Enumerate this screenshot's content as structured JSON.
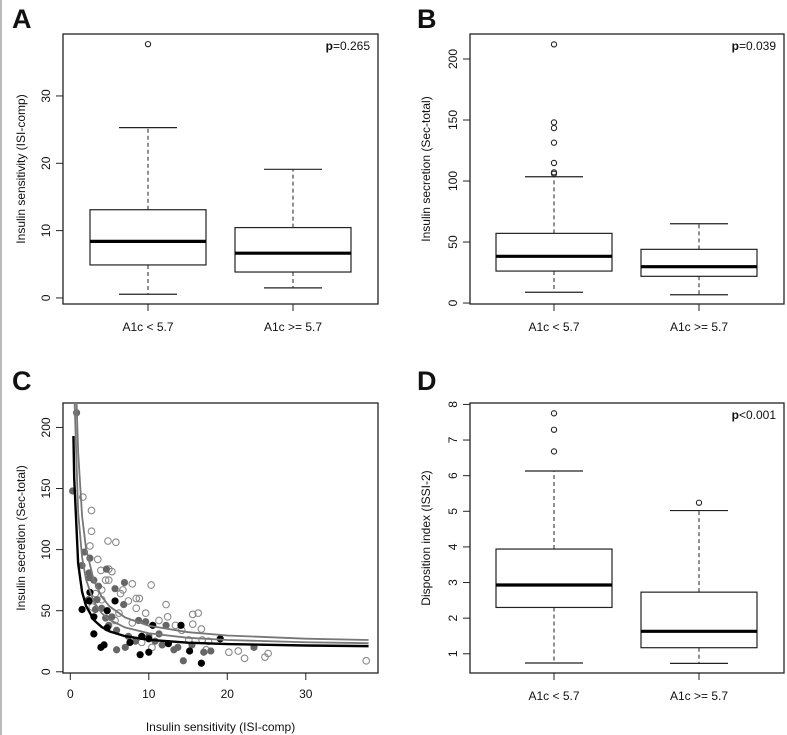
{
  "chart_data": [
    {
      "panel": "A",
      "type": "boxplot",
      "ylabel": "Insulin sensitivity (ISI-comp)",
      "categories": [
        "A1c < 5.7",
        "A1c >= 5.7"
      ],
      "ylim": [
        -0.9,
        39.2
      ],
      "yticks": [
        "0",
        "10",
        "20",
        "30"
      ],
      "p_label": "p",
      "p_value": "=0.265",
      "boxes": [
        {
          "whisker_low": 0.55,
          "q1": 4.9,
          "median": 8.4,
          "q3": 13.1,
          "whisker_high": 25.3,
          "outliers": [
            37.7
          ]
        },
        {
          "whisker_low": 1.5,
          "q1": 3.85,
          "median": 6.65,
          "q3": 10.45,
          "whisker_high": 19.1,
          "outliers": []
        }
      ]
    },
    {
      "panel": "B",
      "type": "boxplot",
      "ylabel": "Insulin secretion (Sec-total)",
      "categories": [
        "A1c < 5.7",
        "A1c >= 5.7"
      ],
      "ylim": [
        -0.8,
        220.5
      ],
      "yticks": [
        "0",
        "50",
        "100",
        "150",
        "200"
      ],
      "p_label": "p",
      "p_value": "=0.039",
      "boxes": [
        {
          "whisker_low": 8.8,
          "q1": 26.2,
          "median": 38.3,
          "q3": 57.1,
          "whisker_high": 103.5,
          "outliers": [
            212,
            148,
            143.4,
            131.4,
            114.8,
            107.1,
            106
          ]
        },
        {
          "whisker_low": 6.8,
          "q1": 21.9,
          "median": 29.8,
          "q3": 44,
          "whisker_high": 65,
          "outliers": []
        }
      ]
    },
    {
      "panel": "C",
      "type": "scatter",
      "xlabel": "Insulin sensitivity (ISI-comp)",
      "ylabel": "Insulin secretion (Sec-total)",
      "xlim": [
        -0.93,
        39.2
      ],
      "ylim": [
        -1,
        220
      ],
      "xticks": [
        "0",
        "10",
        "20",
        "30"
      ],
      "yticks": [
        "0",
        "50",
        "100",
        "150",
        "200"
      ],
      "series": [
        {
          "marker": "open",
          "color": "#8a8a8a",
          "points": [
            [
              1.6,
              143
            ],
            [
              2.7,
              132
            ],
            [
              2.7,
              115
            ],
            [
              2.5,
              103
            ],
            [
              4.8,
              107
            ],
            [
              5.8,
              106
            ],
            [
              3.9,
              83
            ],
            [
              4.9,
              84
            ],
            [
              5.3,
              82
            ],
            [
              4.5,
              75
            ],
            [
              4.9,
              75
            ],
            [
              6.7,
              67
            ],
            [
              7.9,
              72
            ],
            [
              10.3,
              71
            ],
            [
              8.4,
              60
            ],
            [
              8.8,
              60
            ],
            [
              7.4,
              58
            ],
            [
              8.4,
              52
            ],
            [
              12.2,
              55
            ],
            [
              12.4,
              45
            ],
            [
              15.6,
              47
            ],
            [
              16.3,
              48
            ],
            [
              15.6,
              39
            ],
            [
              16.7,
              35
            ],
            [
              20.2,
              16
            ],
            [
              21.4,
              17
            ],
            [
              22.2,
              11
            ],
            [
              24.8,
              12
            ],
            [
              25.2,
              15
            ],
            [
              37.7,
              9
            ],
            [
              10.4,
              20
            ],
            [
              9.1,
              24
            ],
            [
              13.4,
              38
            ],
            [
              14.2,
              34
            ],
            [
              11.3,
              42
            ],
            [
              9.6,
              48
            ],
            [
              6.4,
              64
            ],
            [
              4.0,
              67
            ],
            [
              3.2,
              64
            ],
            [
              5.7,
              42
            ],
            [
              7.9,
              40
            ],
            [
              6.2,
              48
            ],
            [
              16.8,
              26
            ],
            [
              17.6,
              25
            ],
            [
              17.3,
              18
            ],
            [
              15.1,
              26
            ],
            [
              3.5,
              92
            ],
            [
              4.0,
              59
            ],
            [
              2.8,
              53
            ]
          ]
        },
        {
          "marker": "filled",
          "color": "#666666",
          "points": [
            [
              0.8,
              212
            ],
            [
              1.5,
              87
            ],
            [
              1.8,
              98
            ],
            [
              2.5,
              93
            ],
            [
              2.4,
              81
            ],
            [
              2.4,
              77
            ],
            [
              3.0,
              75
            ],
            [
              3.6,
              70
            ],
            [
              4.6,
              84
            ],
            [
              5.7,
              68
            ],
            [
              6.9,
              73
            ],
            [
              6.8,
              55
            ],
            [
              3.4,
              59
            ],
            [
              3.2,
              51
            ],
            [
              4.0,
              52
            ],
            [
              4.5,
              44
            ],
            [
              5.3,
              45
            ],
            [
              5.9,
              34
            ],
            [
              5.9,
              18
            ],
            [
              7.0,
              20
            ],
            [
              7.4,
              29
            ],
            [
              8.7,
              42
            ],
            [
              9.6,
              41
            ],
            [
              11.3,
              31
            ],
            [
              12.2,
              38
            ],
            [
              11.7,
              22
            ],
            [
              13.2,
              18
            ],
            [
              13.7,
              20
            ],
            [
              14.4,
              9
            ],
            [
              15.5,
              22
            ],
            [
              17.0,
              16
            ],
            [
              17.9,
              17
            ],
            [
              23.4,
              20
            ],
            [
              0.3,
              148
            ],
            [
              8.3,
              25
            ],
            [
              10.0,
              29
            ],
            [
              10.8,
              25
            ],
            [
              4.9,
              38
            ],
            [
              2.3,
              59
            ]
          ]
        },
        {
          "marker": "filled",
          "color": "#000000",
          "points": [
            [
              1.5,
              51
            ],
            [
              2.5,
              65
            ],
            [
              2.4,
              58
            ],
            [
              3.0,
              45
            ],
            [
              3.0,
              31
            ],
            [
              3.9,
              20
            ],
            [
              4.3,
              22
            ],
            [
              4.7,
              50
            ],
            [
              5.7,
              58
            ],
            [
              4.7,
              36
            ],
            [
              7.6,
              24
            ],
            [
              8.9,
              14
            ],
            [
              9.1,
              29
            ],
            [
              10.0,
              16
            ],
            [
              10.0,
              27
            ],
            [
              10.5,
              38
            ],
            [
              12.5,
              23
            ],
            [
              14.1,
              38
            ],
            [
              15.2,
              17
            ],
            [
              16.7,
              7
            ],
            [
              19.1,
              27
            ]
          ]
        }
      ],
      "curves": [
        {
          "color": "#777777",
          "points": [
            [
              0.8,
              220
            ],
            [
              1,
              180
            ],
            [
              1.5,
              127.5
            ],
            [
              2,
              101
            ],
            [
              3,
              74.6
            ],
            [
              4,
              61.4
            ],
            [
              5,
              53.5
            ],
            [
              7,
              44.4
            ],
            [
              10,
              37.7
            ],
            [
              15,
              32.4
            ],
            [
              20,
              29.7
            ],
            [
              30,
              27.1
            ],
            [
              38,
              26
            ]
          ]
        },
        {
          "color": "#777777",
          "points": [
            [
              0.55,
              220
            ],
            [
              1,
              130.5
            ],
            [
              1.5,
              93.8
            ],
            [
              2,
              75.5
            ],
            [
              3,
              57.2
            ],
            [
              4,
              48
            ],
            [
              5,
              42.5
            ],
            [
              7,
              36.2
            ],
            [
              10,
              31.5
            ],
            [
              15,
              27.8
            ],
            [
              20,
              26
            ],
            [
              30,
              24.2
            ],
            [
              38,
              23.4
            ]
          ]
        },
        {
          "color": "#000000",
          "points": [
            [
              0.4,
              193
            ],
            [
              0.5,
              158
            ],
            [
              1,
              88.7
            ],
            [
              1.5,
              65.5
            ],
            [
              2,
              54
            ],
            [
              3,
              42.4
            ],
            [
              4,
              36.6
            ],
            [
              5,
              33.1
            ],
            [
              7,
              29.1
            ],
            [
              10,
              26.2
            ],
            [
              15,
              23.8
            ],
            [
              20,
              22.7
            ],
            [
              30,
              21.5
            ],
            [
              38,
              21
            ]
          ]
        }
      ]
    },
    {
      "panel": "D",
      "type": "boxplot",
      "ylabel": "Disposition index (ISSI-2)",
      "categories": [
        "A1c < 5.7",
        "A1c >= 5.7"
      ],
      "ylim": [
        0.46,
        8.04
      ],
      "yticks": [
        "1",
        "2",
        "3",
        "4",
        "5",
        "6",
        "7",
        "8"
      ],
      "p_label": "p",
      "p_value": "<0.001",
      "boxes": [
        {
          "whisker_low": 0.74,
          "q1": 2.3,
          "median": 2.93,
          "q3": 3.94,
          "whisker_high": 6.13,
          "outliers": [
            6.68,
            7.29,
            7.75
          ]
        },
        {
          "whisker_low": 0.73,
          "q1": 1.17,
          "median": 1.63,
          "q3": 2.73,
          "whisker_high": 5.02,
          "outliers": [
            5.24
          ]
        }
      ]
    }
  ]
}
